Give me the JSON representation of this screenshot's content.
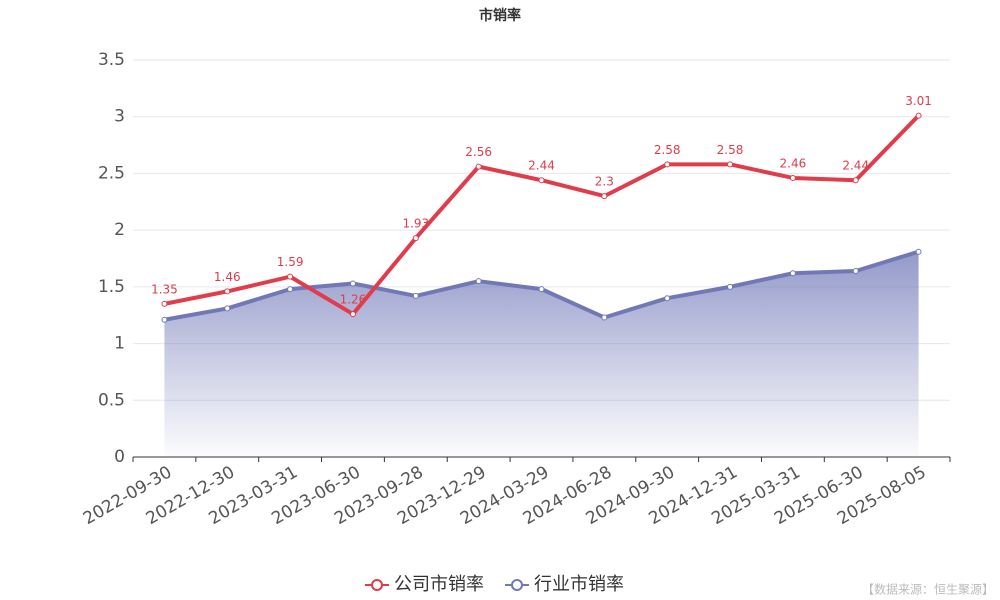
{
  "chart_data": {
    "type": "line",
    "title": "市销率",
    "categories": [
      "2022-09-30",
      "2022-12-30",
      "2023-03-31",
      "2023-06-30",
      "2023-09-28",
      "2023-12-29",
      "2024-03-29",
      "2024-06-28",
      "2024-09-30",
      "2024-12-31",
      "2025-03-31",
      "2025-06-30",
      "2025-08-05"
    ],
    "series": [
      {
        "name": "公司市销率",
        "color": "#e03c4b",
        "values": [
          1.35,
          1.46,
          1.59,
          1.26,
          1.93,
          2.56,
          2.44,
          2.3,
          2.58,
          2.58,
          2.46,
          2.44,
          3.01
        ],
        "data_labels": true
      },
      {
        "name": "行业市销率",
        "color": "#7078b8",
        "values": [
          1.21,
          1.31,
          1.48,
          1.53,
          1.42,
          1.55,
          1.48,
          1.23,
          1.4,
          1.5,
          1.62,
          1.64,
          1.81
        ],
        "area": true
      }
    ],
    "ylim": [
      0,
      3.5
    ],
    "yticks": [
      0,
      0.5,
      1,
      1.5,
      2,
      2.5,
      3,
      3.5
    ],
    "grid": true,
    "legend": "bottom",
    "source": "【数据来源：恒生聚源】"
  }
}
